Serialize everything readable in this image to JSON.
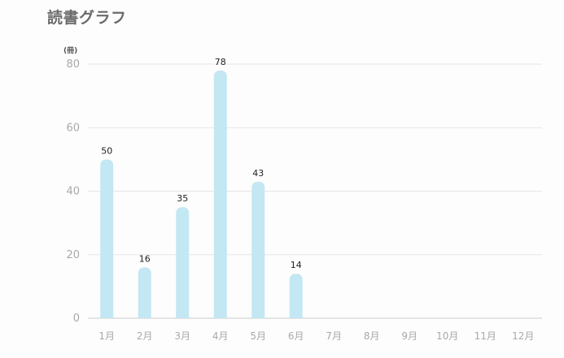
{
  "header": {
    "title": "読書グラフ"
  },
  "chart_data": {
    "type": "bar",
    "title": "読書グラフ",
    "y_unit": "(冊)",
    "categories": [
      "1月",
      "2月",
      "3月",
      "4月",
      "5月",
      "6月",
      "7月",
      "8月",
      "9月",
      "10月",
      "11月",
      "12月"
    ],
    "values": [
      50,
      16,
      35,
      78,
      43,
      14,
      null,
      null,
      null,
      null,
      null,
      null
    ],
    "ylim": [
      0,
      80
    ],
    "yticks": [
      0,
      20,
      40,
      60,
      80
    ],
    "grid": true,
    "bar_color": "#c3e7f3",
    "grid_color": "#e6e6e6",
    "axis_color": "#d6d6d6"
  }
}
